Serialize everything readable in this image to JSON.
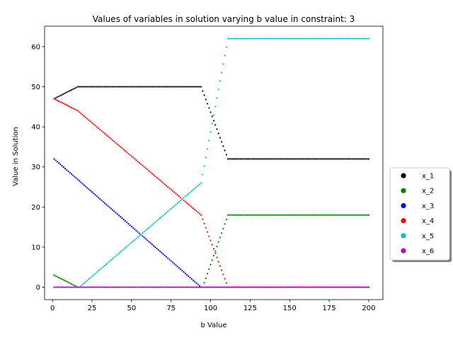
{
  "chart_data": {
    "type": "scatter",
    "title": "Values of variables in solution varying b value in constraint: 3",
    "xlabel": "b Value",
    "ylabel": "Value in Solution",
    "xlim": [
      -5,
      209
    ],
    "ylim": [
      -3.1,
      65.1
    ],
    "xticks": [
      0,
      25,
      50,
      75,
      100,
      125,
      150,
      175,
      200
    ],
    "yticks": [
      0,
      10,
      20,
      30,
      40,
      50,
      60
    ],
    "grid": false,
    "legend_position": "center-right, outside plot",
    "x": {
      "start": 1,
      "end": 200,
      "step": 1
    },
    "series": [
      {
        "name": "x_1",
        "color": "#000000",
        "points": [
          [
            1,
            47
          ],
          [
            16,
            50
          ],
          [
            94,
            50
          ],
          [
            111,
            32
          ],
          [
            200,
            32
          ]
        ]
      },
      {
        "name": "x_2",
        "color": "#008000",
        "points": [
          [
            1,
            3
          ],
          [
            16,
            0
          ],
          [
            95,
            0
          ],
          [
            111,
            18
          ],
          [
            200,
            18
          ]
        ]
      },
      {
        "name": "x_3",
        "color": "#0000ff",
        "points": [
          [
            1,
            32
          ],
          [
            94,
            0
          ],
          [
            200,
            0
          ]
        ]
      },
      {
        "name": "x_4",
        "color": "#ff0000",
        "points": [
          [
            1,
            47
          ],
          [
            16,
            44
          ],
          [
            94,
            18
          ],
          [
            111,
            0
          ],
          [
            200,
            0
          ]
        ]
      },
      {
        "name": "x_5",
        "color": "#00bfbf",
        "points": [
          [
            1,
            0
          ],
          [
            17,
            0
          ],
          [
            94,
            26
          ],
          [
            111,
            62
          ],
          [
            200,
            62
          ]
        ]
      },
      {
        "name": "x_6",
        "color": "#bf00bf",
        "points": [
          [
            1,
            0
          ],
          [
            200,
            0
          ]
        ]
      }
    ]
  }
}
